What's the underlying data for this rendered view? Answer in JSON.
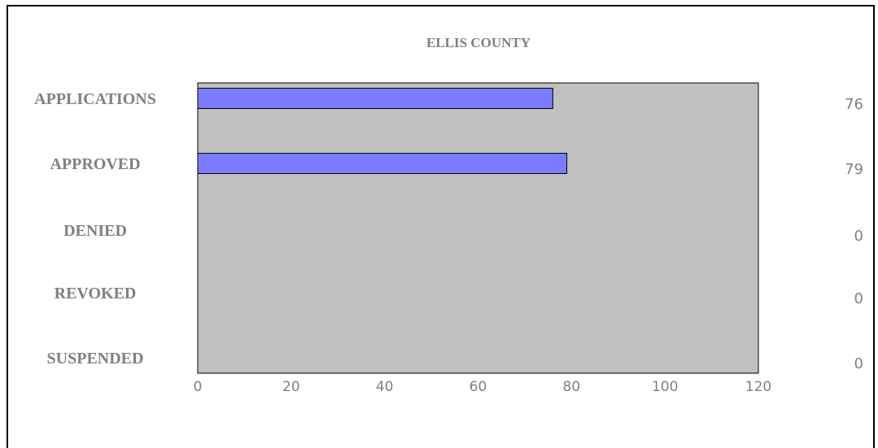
{
  "chart_data": {
    "type": "bar",
    "orientation": "horizontal",
    "title": "ELLIS COUNTY",
    "categories": [
      "APPLICATIONS",
      "APPROVED",
      "DENIED",
      "REVOKED",
      "SUSPENDED"
    ],
    "values": [
      76,
      79,
      0,
      0,
      0
    ],
    "value_labels": [
      "76",
      "79",
      "0",
      "0",
      "0"
    ],
    "xlim": [
      0,
      120
    ],
    "x_ticks": [
      0,
      20,
      40,
      60,
      80,
      100,
      120
    ],
    "xlabel": "",
    "ylabel": "",
    "grid": false,
    "colors": {
      "plot_background": "#c0c0c0",
      "bar_fill": "#7b7bff",
      "bar_stroke": "#000000",
      "text": "#808080"
    }
  }
}
